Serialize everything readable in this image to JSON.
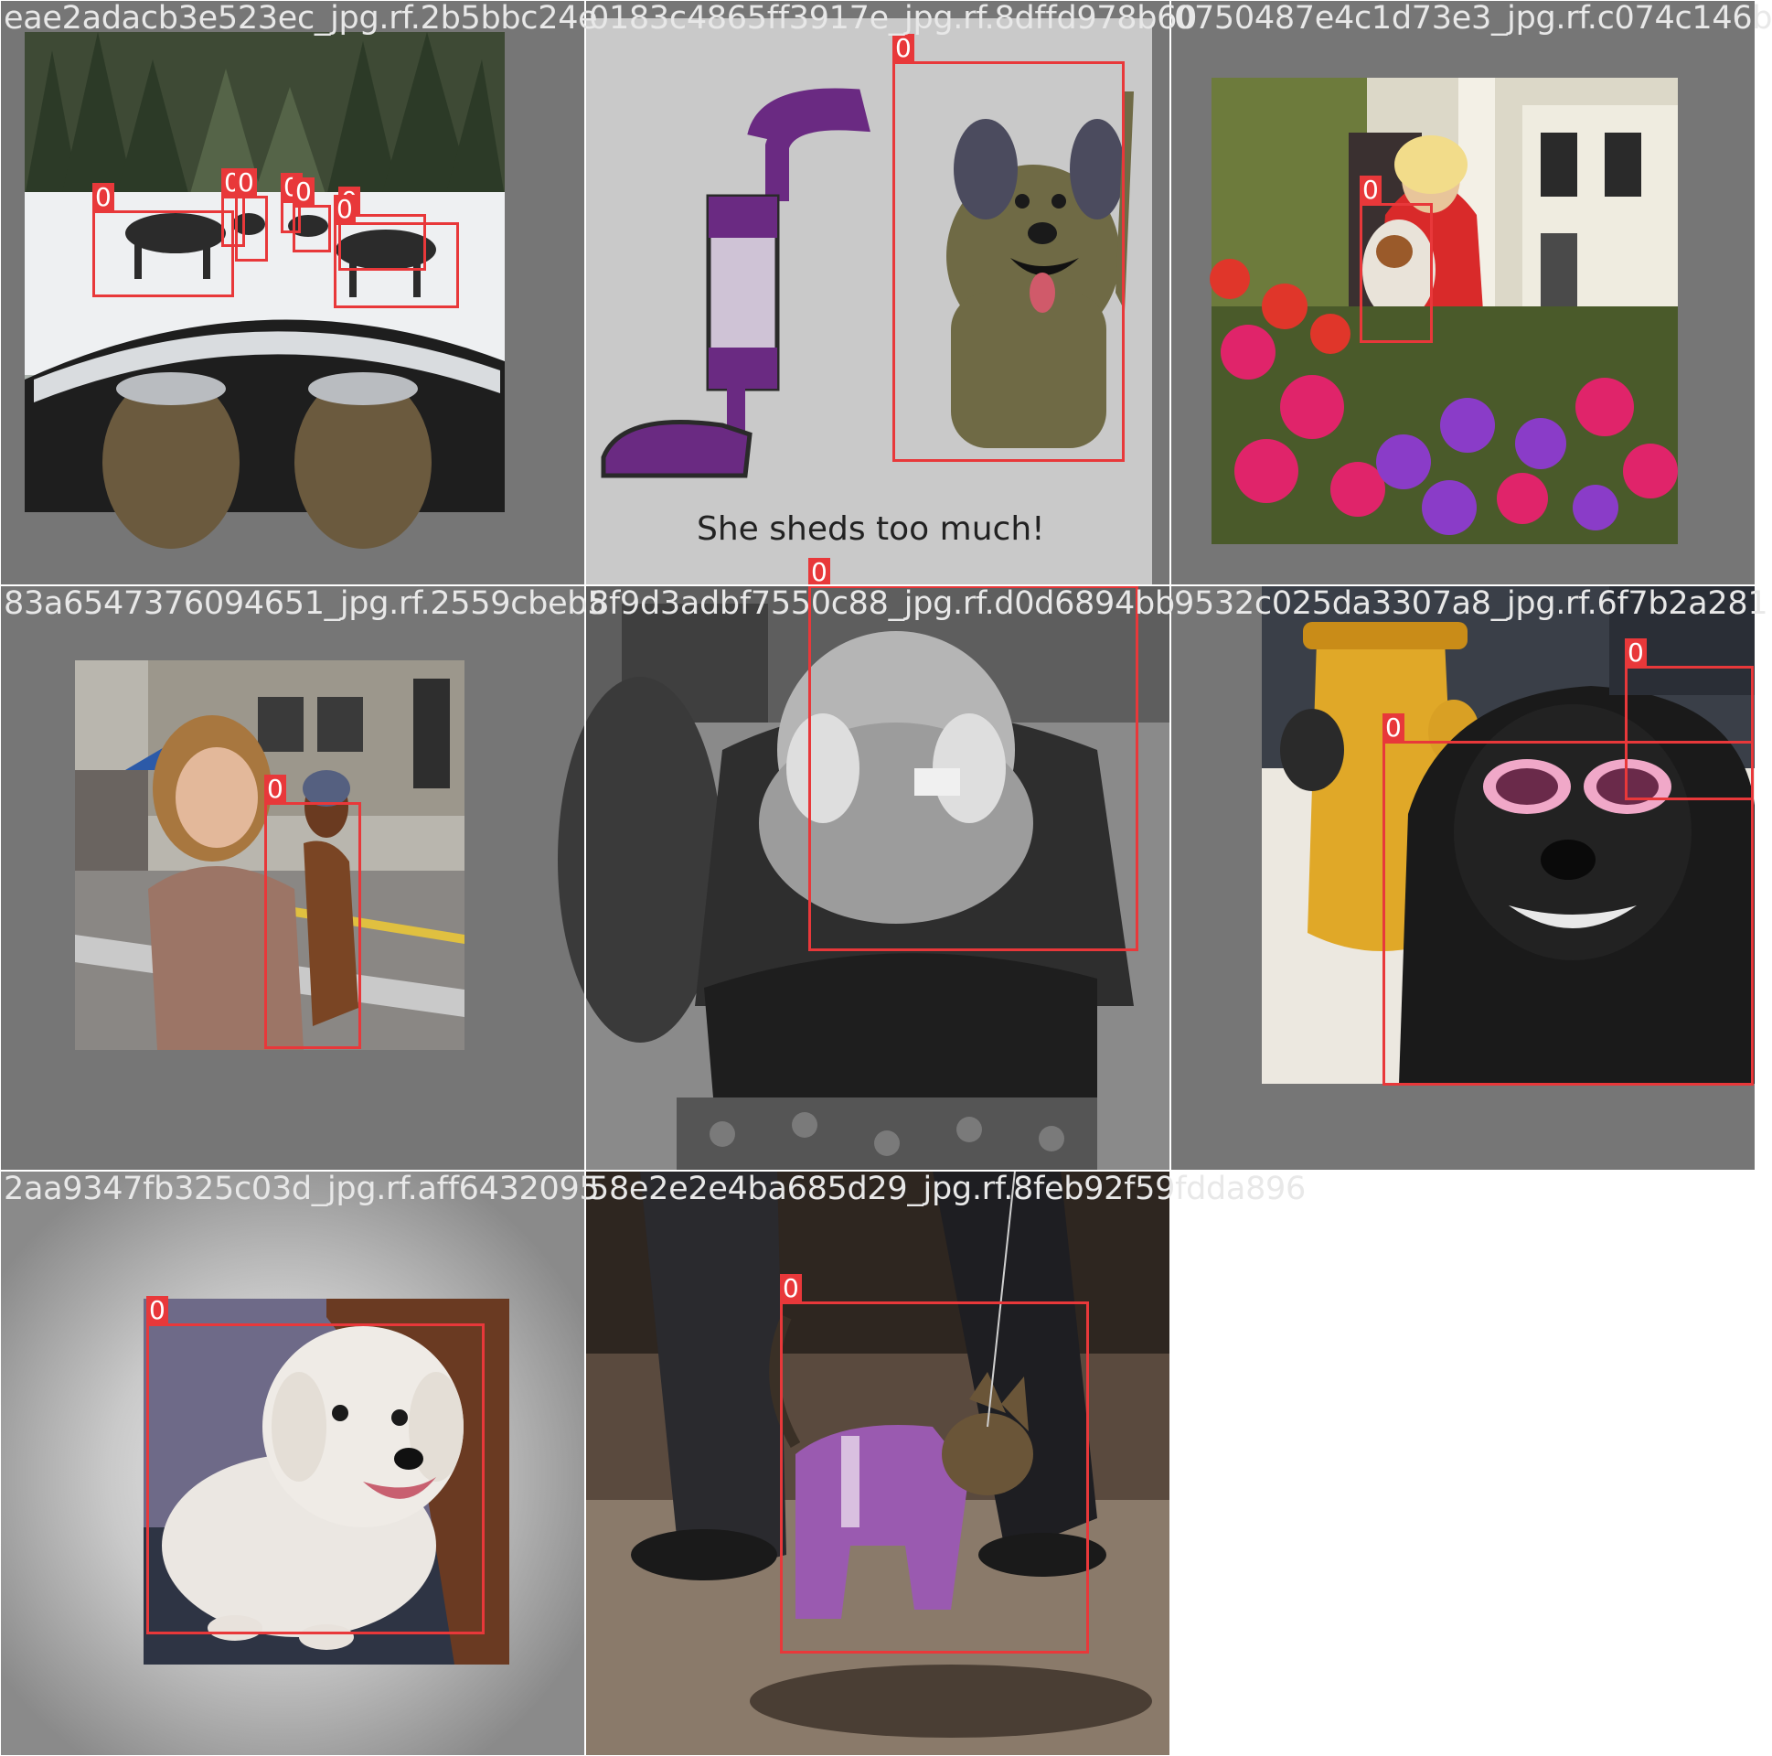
{
  "tiles": [
    {
      "filename": "eae2adacb3e523ec_jpg.rf.2b5bbc24e",
      "box_labels": [
        "0",
        "0",
        "0",
        "0",
        "0",
        "0",
        "0",
        "0",
        "0"
      ]
    },
    {
      "filename": "0183c4865ff3917e_jpg.rf.8dffd978b60",
      "box_labels": [
        "0"
      ],
      "caption": "She sheds too much!"
    },
    {
      "filename": "0750487e4c1d73e3_jpg.rf.c074c146b",
      "box_labels": [
        "0"
      ]
    },
    {
      "filename": "83a6547376094651_jpg.rf.2559cbeb5",
      "box_labels": [
        "0"
      ]
    },
    {
      "filename": "8f9d3adbf7550c88_jpg.rf.d0d6894bb",
      "box_labels": [
        "0"
      ]
    },
    {
      "filename": "9532c025da3307a8_jpg.rf.6f7b2a281",
      "box_labels": [
        "0",
        "0"
      ]
    },
    {
      "filename": "2aa9347fb325c03d_jpg.rf.aff6432095",
      "box_labels": [
        "0"
      ]
    },
    {
      "filename": "58e2e2e4ba685d29_jpg.rf.8feb92f59fdda896",
      "box_labels": [
        "0"
      ]
    }
  ],
  "colors": {
    "tile_background": "#767676",
    "box": "#e8383a",
    "label_text": "#ffffff",
    "filename_text": "#e8e8e8"
  }
}
